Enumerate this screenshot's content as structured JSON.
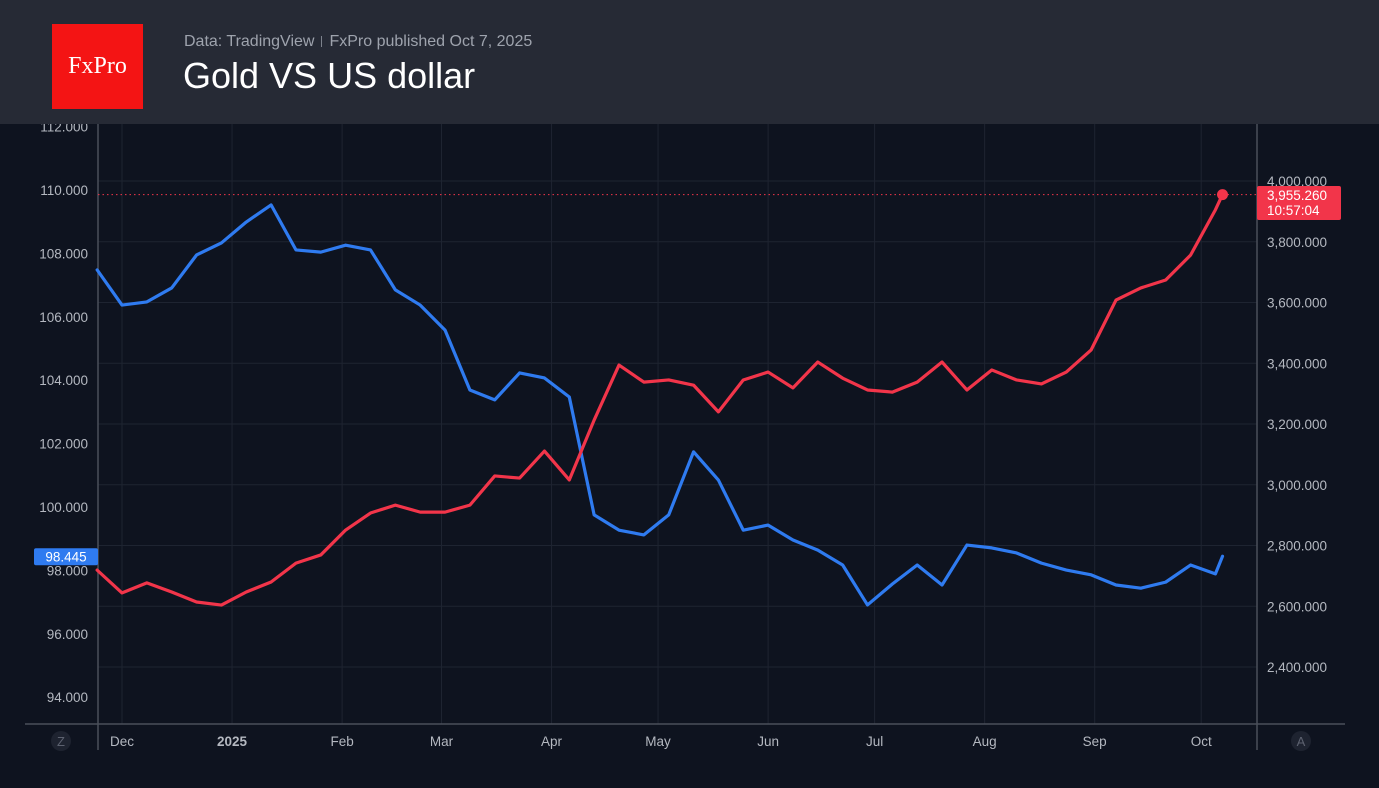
{
  "header": {
    "logo_text": "FxPro",
    "source": "Data: TradingView",
    "published": "FxPro published Oct 7,  2025",
    "title": "Gold VS US dollar"
  },
  "controls": {
    "left_button": "Z",
    "right_button": "A"
  },
  "colors": {
    "usd": "#2f7bf0",
    "gold": "#f2354a",
    "background": "#0e131f",
    "header": "#262a35",
    "logo": "#f41414"
  },
  "chart_data": {
    "type": "line",
    "title": "Gold VS US dollar",
    "grid": true,
    "x_tick_labels": [
      "Dec",
      "2025",
      "Feb",
      "Mar",
      "Apr",
      "May",
      "Jun",
      "Jul",
      "Aug",
      "Sep",
      "Oct"
    ],
    "x_tick_dates": [
      "2024-12-01",
      "2025-01-01",
      "2025-02-01",
      "2025-03-01",
      "2025-04-01",
      "2025-05-01",
      "2025-06-01",
      "2025-07-01",
      "2025-08-01",
      "2025-09-01",
      "2025-10-01"
    ],
    "left_axis": {
      "ticks": [
        "112.000",
        "110.000",
        "108.000",
        "106.000",
        "104.000",
        "102.000",
        "100.000",
        "98.000",
        "96.000",
        "94.000"
      ],
      "range": [
        93.2,
        112.1
      ]
    },
    "right_axis": {
      "ticks": [
        "4,000.000",
        "3,800.000",
        "3,600.000",
        "3,400.000",
        "3,200.000",
        "3,000.000",
        "2,800.000",
        "2,600.000",
        "2,400.000"
      ],
      "range": [
        2210,
        4190
      ]
    },
    "x": [
      "2024-11-24",
      "2024-12-01",
      "2024-12-08",
      "2024-12-15",
      "2024-12-22",
      "2024-12-29",
      "2025-01-05",
      "2025-01-12",
      "2025-01-19",
      "2025-01-26",
      "2025-02-02",
      "2025-02-09",
      "2025-02-16",
      "2025-02-23",
      "2025-03-02",
      "2025-03-09",
      "2025-03-16",
      "2025-03-23",
      "2025-03-30",
      "2025-04-06",
      "2025-04-13",
      "2025-04-20",
      "2025-04-27",
      "2025-05-04",
      "2025-05-11",
      "2025-05-18",
      "2025-05-25",
      "2025-06-01",
      "2025-06-08",
      "2025-06-15",
      "2025-06-22",
      "2025-06-29",
      "2025-07-06",
      "2025-07-13",
      "2025-07-20",
      "2025-07-27",
      "2025-08-03",
      "2025-08-10",
      "2025-08-17",
      "2025-08-24",
      "2025-08-31",
      "2025-09-07",
      "2025-09-14",
      "2025-09-21",
      "2025-09-28",
      "2025-10-05",
      "2025-10-07"
    ],
    "series": [
      {
        "axis": "left",
        "color": "#2f7bf0",
        "last_label": "98.445",
        "values": [
          107.48,
          106.37,
          106.47,
          106.91,
          107.95,
          108.33,
          108.99,
          109.53,
          108.11,
          108.04,
          108.26,
          108.11,
          106.85,
          106.37,
          105.58,
          103.69,
          103.38,
          104.23,
          104.07,
          103.47,
          99.75,
          99.27,
          99.12,
          99.75,
          101.74,
          100.85,
          99.27,
          99.43,
          98.96,
          98.64,
          98.17,
          96.91,
          97.57,
          98.17,
          97.54,
          98.8,
          98.71,
          98.55,
          98.23,
          98.01,
          97.86,
          97.54,
          97.44,
          97.63,
          98.17,
          97.89,
          98.445
        ]
      },
      {
        "axis": "right",
        "color": "#f2354a",
        "last_label": "3,955.260",
        "last_time": "10:57:04",
        "values": [
          2719,
          2644,
          2677,
          2647,
          2614,
          2604,
          2647,
          2680,
          2742,
          2769,
          2851,
          2907,
          2933,
          2910,
          2910,
          2933,
          3029,
          3022,
          3111,
          3016,
          3213,
          3394,
          3338,
          3345,
          3328,
          3240,
          3345,
          3371,
          3319,
          3404,
          3351,
          3312,
          3305,
          3338,
          3404,
          3312,
          3378,
          3345,
          3332,
          3371,
          3444,
          3608,
          3648,
          3674,
          3756,
          3905,
          3955.26
        ]
      }
    ]
  }
}
